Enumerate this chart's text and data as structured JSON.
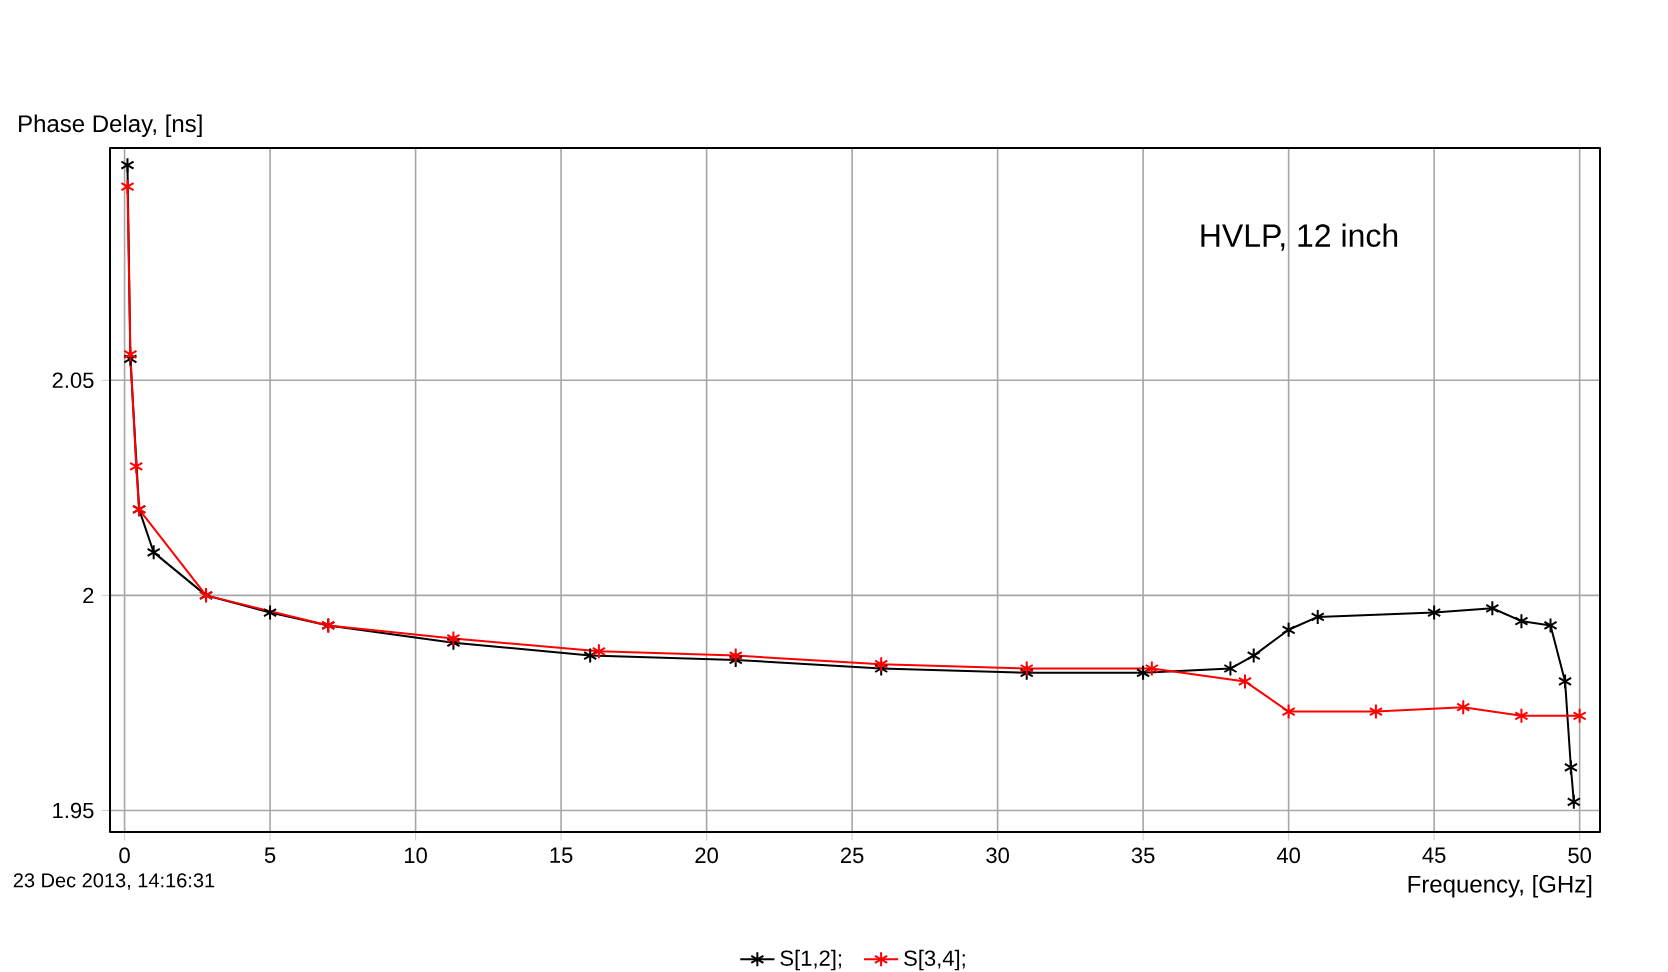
{
  "chart_data": {
    "type": "line",
    "xlabel": "Frequency, [GHz]",
    "ylabel": "Phase Delay, [ns]",
    "annotations": [
      "HVLP, 12 inch",
      "23 Dec 2013, 14:16:31"
    ],
    "xlim": [
      -0.5,
      50.7
    ],
    "ylim": [
      1.945,
      2.104
    ],
    "xticks": [
      0,
      5,
      10,
      15,
      20,
      25,
      30,
      35,
      40,
      45,
      50
    ],
    "yticks": [
      1.95,
      2,
      2.05
    ],
    "grid": true,
    "legend": "bottom",
    "marker": "cross",
    "line_style": "solid",
    "series": [
      {
        "name": "S[1,2];",
        "color": "#000000",
        "x": [
          0.1,
          0.2,
          0.5,
          1,
          2.8,
          5,
          7,
          11.3,
          16,
          21,
          26,
          31,
          35,
          38,
          38.8,
          40,
          41,
          45,
          47,
          48,
          49,
          49.5,
          49.7,
          49.8
        ],
        "values": [
          2.1,
          2.055,
          2.02,
          2.01,
          2.0,
          1.996,
          1.993,
          1.989,
          1.986,
          1.985,
          1.983,
          1.982,
          1.982,
          1.983,
          1.986,
          1.992,
          1.995,
          1.996,
          1.997,
          1.994,
          1.993,
          1.98,
          1.96,
          1.952
        ]
      },
      {
        "name": "S[3,4];",
        "color": "#ff0000",
        "x": [
          0.1,
          0.2,
          0.4,
          0.5,
          2.8,
          7,
          11.3,
          16.3,
          21,
          26,
          31,
          35.3,
          38.5,
          40,
          43,
          46,
          48,
          50
        ],
        "values": [
          2.095,
          2.056,
          2.03,
          2.02,
          2.0,
          1.993,
          1.99,
          1.987,
          1.986,
          1.984,
          1.983,
          1.983,
          1.98,
          1.973,
          1.973,
          1.974,
          1.972,
          1.972
        ]
      }
    ]
  }
}
